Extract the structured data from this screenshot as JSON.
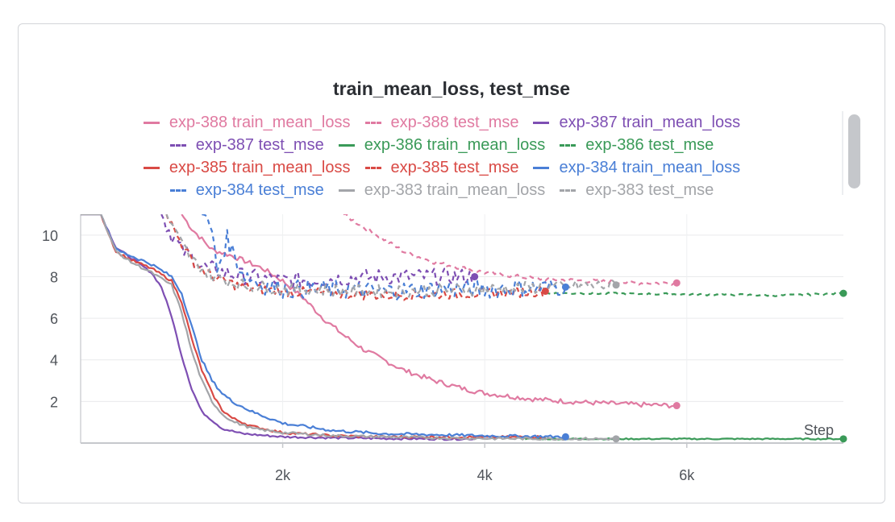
{
  "chart_data": {
    "type": "line",
    "title": "train_mean_loss, test_mse",
    "xlabel": "Step",
    "ylabel": "",
    "xlim": [
      0,
      7550
    ],
    "ylim": [
      0,
      11
    ],
    "x_ticks": [
      {
        "value": 2000,
        "label": "2k"
      },
      {
        "value": 4000,
        "label": "4k"
      },
      {
        "value": 6000,
        "label": "6k"
      }
    ],
    "y_ticks": [
      {
        "value": 2,
        "label": "2"
      },
      {
        "value": 4,
        "label": "4"
      },
      {
        "value": 6,
        "label": "6"
      },
      {
        "value": 8,
        "label": "8"
      },
      {
        "value": 10,
        "label": "10"
      }
    ],
    "grid": true,
    "legend_position": "top",
    "series": [
      {
        "name": "exp-388 train_mean_loss",
        "color": "#e07aa1",
        "dash": false,
        "noise": 0.12,
        "end_marker": true,
        "x": [
          1000,
          1100,
          1300,
          1500,
          1800,
          2000,
          2200,
          2400,
          2600,
          2800,
          3000,
          3200,
          3500,
          3800,
          4000,
          4500,
          5000,
          5500,
          5900
        ],
        "y": [
          11,
          10.3,
          9.3,
          9.0,
          8.4,
          7.8,
          7.0,
          6.0,
          5.2,
          4.5,
          4.0,
          3.5,
          3.0,
          2.6,
          2.4,
          2.1,
          1.95,
          1.85,
          1.8
        ]
      },
      {
        "name": "exp-388 test_mse",
        "color": "#e07aa1",
        "dash": true,
        "noise": 0.1,
        "end_marker": true,
        "x": [
          2600,
          2800,
          3000,
          3200,
          3500,
          3800,
          4000,
          4500,
          5000,
          5500,
          5900
        ],
        "y": [
          11,
          10.4,
          9.8,
          9.2,
          8.7,
          8.4,
          8.2,
          7.9,
          7.8,
          7.7,
          7.7
        ]
      },
      {
        "name": "exp-387 train_mean_loss",
        "color": "#7e4fb3",
        "dash": false,
        "noise": 0.05,
        "end_marker": false,
        "x": [
          0,
          200,
          350,
          500,
          700,
          800,
          900,
          1000,
          1100,
          1200,
          1400,
          1600,
          2000,
          2500,
          3000,
          3500,
          3900
        ],
        "y": [
          11,
          11,
          9.4,
          8.9,
          8.2,
          7.5,
          6.1,
          4.2,
          2.6,
          1.5,
          0.7,
          0.45,
          0.3,
          0.25,
          0.22,
          0.2,
          0.2
        ]
      },
      {
        "name": "exp-387 test_mse",
        "color": "#7e4fb3",
        "dash": true,
        "noise": 0.4,
        "end_marker": true,
        "x": [
          800,
          900,
          1000,
          1200,
          1500,
          1800,
          2000,
          2500,
          3000,
          3500,
          3900
        ],
        "y": [
          11,
          10.0,
          9.3,
          8.5,
          8.1,
          7.9,
          7.8,
          7.9,
          8.0,
          8.0,
          8.0
        ]
      },
      {
        "name": "exp-386 train_mean_loss",
        "color": "#3a9a58",
        "dash": false,
        "noise": 0.03,
        "end_marker": true,
        "x": [
          4400,
          5000,
          6000,
          7000,
          7550
        ],
        "y": [
          0.2,
          0.2,
          0.2,
          0.2,
          0.2
        ]
      },
      {
        "name": "exp-386 test_mse",
        "color": "#3a9a58",
        "dash": true,
        "noise": 0.05,
        "end_marker": true,
        "x": [
          4600,
          5000,
          6000,
          7000,
          7550
        ],
        "y": [
          7.2,
          7.2,
          7.15,
          7.1,
          7.2
        ]
      },
      {
        "name": "exp-385 train_mean_loss",
        "color": "#d94a45",
        "dash": false,
        "noise": 0.06,
        "end_marker": false,
        "x": [
          0,
          200,
          350,
          500,
          700,
          900,
          1000,
          1100,
          1200,
          1300,
          1400,
          1500,
          1700,
          2000,
          2500,
          3000,
          3500,
          4000,
          4600
        ],
        "y": [
          11,
          11,
          9.2,
          8.8,
          8.4,
          7.8,
          6.8,
          5.0,
          3.5,
          2.4,
          1.6,
          1.2,
          0.8,
          0.5,
          0.35,
          0.3,
          0.3,
          0.28,
          0.3
        ]
      },
      {
        "name": "exp-385 test_mse",
        "color": "#d94a45",
        "dash": true,
        "noise": 0.25,
        "end_marker": true,
        "x": [
          850,
          950,
          1100,
          1300,
          1600,
          2000,
          2500,
          3000,
          3500,
          4000,
          4600
        ],
        "y": [
          11,
          10.0,
          8.8,
          8.0,
          7.5,
          7.3,
          7.2,
          7.1,
          7.15,
          7.2,
          7.3
        ]
      },
      {
        "name": "exp-384 train_mean_loss",
        "color": "#4a7fd6",
        "dash": false,
        "noise": 0.07,
        "end_marker": true,
        "x": [
          0,
          200,
          350,
          500,
          700,
          900,
          1000,
          1100,
          1200,
          1300,
          1400,
          1500,
          1700,
          2000,
          2500,
          3000,
          3500,
          4000,
          4800
        ],
        "y": [
          11,
          11,
          9.3,
          9.0,
          8.6,
          8.0,
          7.2,
          5.6,
          4.0,
          3.0,
          2.4,
          2.0,
          1.5,
          0.95,
          0.6,
          0.45,
          0.4,
          0.35,
          0.3
        ]
      },
      {
        "name": "exp-384 test_mse",
        "color": "#4a7fd6",
        "dash": true,
        "noise": 0.45,
        "end_marker": true,
        "x": [
          1200,
          1300,
          1350,
          1450,
          1600,
          1800,
          2000,
          2500,
          3000,
          3500,
          4000,
          4800
        ],
        "y": [
          11,
          10.2,
          8.3,
          9.8,
          8.2,
          7.6,
          7.4,
          7.4,
          7.3,
          7.4,
          7.4,
          7.5
        ]
      },
      {
        "name": "exp-383 train_mean_loss",
        "color": "#a3a5a9",
        "dash": false,
        "noise": 0.06,
        "end_marker": true,
        "x": [
          0,
          200,
          350,
          500,
          700,
          900,
          1000,
          1100,
          1200,
          1300,
          1400,
          1500,
          1700,
          2000,
          2500,
          3000,
          3500,
          4000,
          5300
        ],
        "y": [
          11,
          11,
          9.2,
          8.7,
          8.2,
          7.6,
          6.3,
          4.4,
          3.0,
          2.0,
          1.4,
          1.05,
          0.7,
          0.5,
          0.35,
          0.3,
          0.25,
          0.22,
          0.2
        ]
      },
      {
        "name": "exp-383 test_mse",
        "color": "#a3a5a9",
        "dash": true,
        "noise": 0.3,
        "end_marker": true,
        "x": [
          850,
          950,
          1100,
          1300,
          1600,
          2000,
          2500,
          3000,
          3500,
          4000,
          5300
        ],
        "y": [
          11,
          10.0,
          8.8,
          8.0,
          7.6,
          7.4,
          7.35,
          7.3,
          7.35,
          7.4,
          7.6
        ]
      }
    ]
  }
}
